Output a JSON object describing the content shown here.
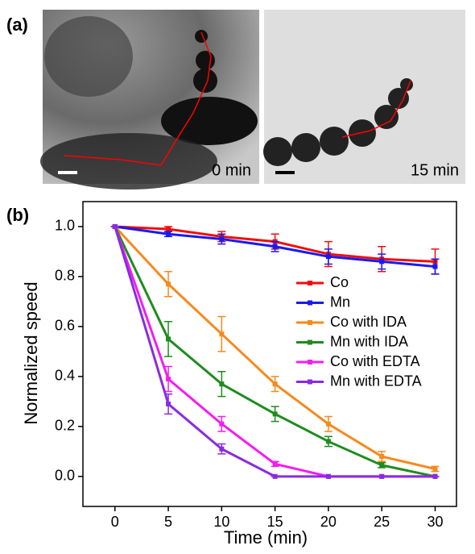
{
  "panel_labels": [
    "(a)",
    "(b)"
  ],
  "images": [
    {
      "label": "0 min"
    },
    {
      "label": "15 min"
    }
  ],
  "chart_data": {
    "type": "line",
    "x_label": "Time (min)",
    "y_label": "Normalized speed",
    "x": [
      0,
      5,
      10,
      15,
      20,
      25,
      30
    ],
    "xlim": [
      -3,
      32
    ],
    "xticks": [
      0,
      5,
      10,
      15,
      20,
      25,
      30
    ],
    "ylim": [
      -0.12,
      1.1
    ],
    "yticks": [
      {
        "value": 0,
        "label": "0.0"
      },
      0.2,
      0.4,
      0.6,
      0.8,
      {
        "value": 1,
        "label": "1.0"
      }
    ],
    "legend": "right",
    "series": [
      {
        "name": "Co",
        "color": "#f20c0c",
        "values": [
          1,
          0.99,
          0.96,
          0.94,
          0.89,
          0.87,
          0.86
        ],
        "errors": [
          0,
          0.01,
          0.02,
          0.03,
          0.05,
          0.05,
          0.05
        ]
      },
      {
        "name": "Mn",
        "color": "#1a1aee",
        "values": [
          1,
          0.97,
          0.95,
          0.92,
          0.88,
          0.86,
          0.84
        ],
        "errors": [
          0,
          0.01,
          0.02,
          0.02,
          0.03,
          0.03,
          0.03
        ]
      },
      {
        "name": "Co with IDA",
        "color": "#f7891c",
        "values": [
          1,
          0.77,
          0.57,
          0.37,
          0.21,
          0.08,
          0.03
        ],
        "errors": [
          0,
          0.05,
          0.07,
          0.03,
          0.03,
          0.02,
          0.01
        ]
      },
      {
        "name": "Mn with IDA",
        "color": "#1e8c1e",
        "values": [
          1,
          0.55,
          0.37,
          0.25,
          0.14,
          0.045,
          0
        ],
        "errors": [
          0,
          0.07,
          0.05,
          0.03,
          0.02,
          0.01,
          0
        ]
      },
      {
        "name": "Co with EDTA",
        "color": "#f21ef2",
        "values": [
          1,
          0.39,
          0.21,
          0.05,
          0,
          0,
          0
        ],
        "errors": [
          0,
          0.05,
          0.03,
          0.01,
          0,
          0,
          0
        ]
      },
      {
        "name": "Mn with EDTA",
        "color": "#8a2be2",
        "values": [
          1,
          0.29,
          0.11,
          0,
          0,
          0,
          0
        ],
        "errors": [
          0,
          0.04,
          0.02,
          0,
          0,
          0,
          0
        ]
      }
    ]
  }
}
